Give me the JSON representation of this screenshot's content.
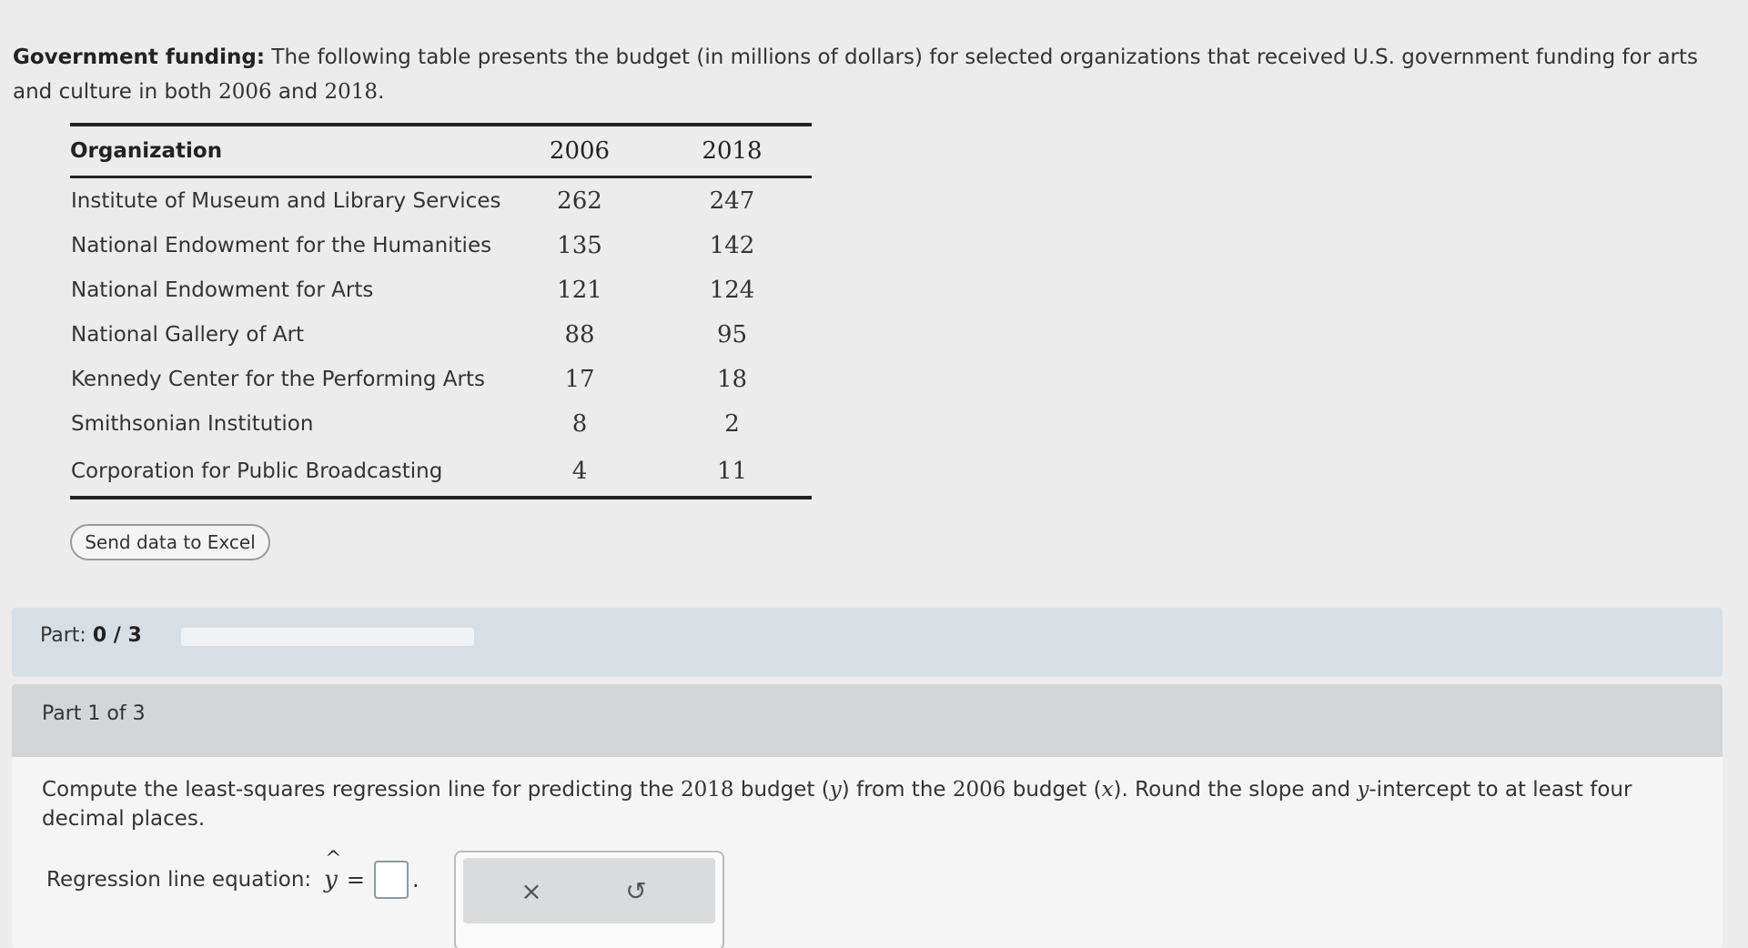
{
  "intro": {
    "bold": "Government funding:",
    "text1": " The following table presents the budget (in millions of dollars) for selected organizations that received U.S. government funding for arts and culture in both ",
    "year1": "2006",
    "and": " and ",
    "year2": "2018",
    "end": "."
  },
  "table": {
    "headers": [
      "Organization",
      "2006",
      "2018"
    ],
    "rows": [
      {
        "org": "Institute of Museum and Library Services",
        "y2006": "262",
        "y2018": "247"
      },
      {
        "org": "National Endowment for the Humanities",
        "y2006": "135",
        "y2018": "142"
      },
      {
        "org": "National Endowment for Arts",
        "y2006": "121",
        "y2018": "124"
      },
      {
        "org": "National Gallery of Art",
        "y2006": "88",
        "y2018": "95"
      },
      {
        "org": "Kennedy Center for the Performing Arts",
        "y2006": "17",
        "y2018": "18"
      },
      {
        "org": "Smithsonian Institution",
        "y2006": "8",
        "y2018": "2"
      },
      {
        "org": "Corporation for Public Broadcasting",
        "y2006": "4",
        "y2018": "11"
      }
    ]
  },
  "excel_button": "Send data to Excel",
  "progress": {
    "label": "Part: ",
    "value": "0 / 3",
    "fraction": 0
  },
  "part": {
    "title": "Part 1 of 3",
    "q1": "Compute the least-squares regression line for predicting the ",
    "q_2018": "2018",
    "q2": " budget (",
    "q_y": "y",
    "q3": ") from the ",
    "q_2006": "2006",
    "q4": " budget (",
    "q_x": "x",
    "q5": "). Round the slope and ",
    "q_y2": "y",
    "q6": "-intercept to at least four decimal places.",
    "eq_label": "Regression line equation:",
    "eq_var": "y",
    "eq_hat": "^",
    "eq_equals": "=",
    "eq_period": "."
  },
  "toolbox": {
    "clear_icon": "×",
    "undo_icon": "↺"
  },
  "colors": {
    "background": "#ececec",
    "progress_bg": "#d8dfe4",
    "part_header_bg": "#d3d5d6"
  }
}
